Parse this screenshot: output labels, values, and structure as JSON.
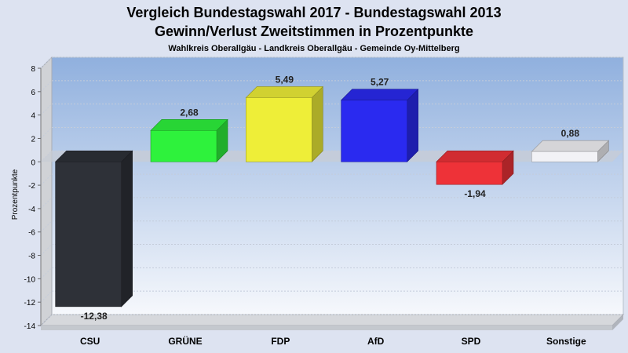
{
  "chart_data": {
    "type": "bar",
    "title": "Vergleich Bundestagswahl 2017 - Bundestagswahl 2013",
    "title2": "Gewinn/Verlust Zweitstimmen in Prozentpunkte",
    "subtitle": "Wahlkreis Oberallgäu - Landkreis Oberallgäu - Gemeinde Oy-Mittelberg",
    "ylabel": "Prozentpunkte",
    "xlabel": "",
    "ylim": [
      -14,
      8
    ],
    "yticks": [
      8,
      6,
      4,
      2,
      0,
      -2,
      -4,
      -6,
      -8,
      -10,
      -12,
      -14
    ],
    "grid": true,
    "categories": [
      "CSU",
      "GRÜNE",
      "FDP",
      "AfD",
      "SPD",
      "Sonstige"
    ],
    "values": [
      -12.38,
      2.68,
      5.49,
      5.27,
      -1.94,
      0.88
    ],
    "value_labels": [
      "-12,38",
      "2,68",
      "5,49",
      "5,27",
      "-1,94",
      "0,88"
    ],
    "colors": [
      "#2e3138",
      "#2ef23c",
      "#eeee38",
      "#2a2af0",
      "#ee3238",
      "#f2f2f6"
    ]
  }
}
